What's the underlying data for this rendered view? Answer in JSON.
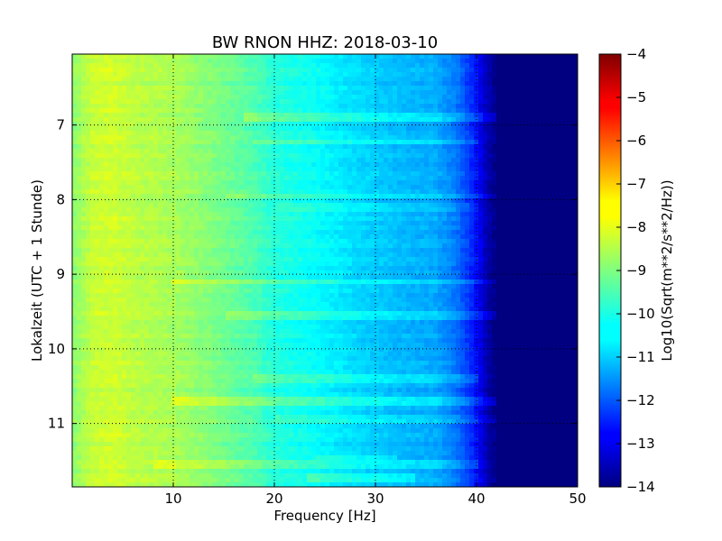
{
  "chart_data": {
    "type": "heatmap",
    "title": "BW RNON HHZ: 2018-03-10",
    "xlabel": "Frequency [Hz]",
    "ylabel": "Lokalzeit (UTC + 1 Stunde)",
    "xlim": [
      0,
      50
    ],
    "ylim": [
      11.85,
      6.05
    ],
    "x_ticks": [
      10,
      20,
      30,
      40,
      50
    ],
    "y_ticks": [
      7,
      8,
      9,
      10,
      11
    ],
    "grid": true,
    "colormap": "jet",
    "colorbar": {
      "label": "Log10(Sqrt(m**2/s**2/Hz))",
      "range": [
        -14,
        -4
      ],
      "ticks": [
        -4,
        -5,
        -6,
        -7,
        -8,
        -9,
        -10,
        -11,
        -12,
        -13,
        -14
      ]
    },
    "spectrum_profile": [
      [
        0,
        -8.9
      ],
      [
        2,
        -8.3
      ],
      [
        4,
        -8.2
      ],
      [
        6,
        -8.4
      ],
      [
        10,
        -8.6
      ],
      [
        14,
        -9.0
      ],
      [
        18,
        -9.5
      ],
      [
        20,
        -9.9
      ],
      [
        24,
        -10.2
      ],
      [
        28,
        -10.6
      ],
      [
        32,
        -10.9
      ],
      [
        36,
        -11.1
      ],
      [
        38,
        -11.6
      ],
      [
        40,
        -12.6
      ],
      [
        41,
        -13.5
      ],
      [
        42,
        -14
      ],
      [
        50,
        -14
      ]
    ],
    "bright_bands": [
      {
        "time": 6.9,
        "freq_range": [
          17,
          43
        ],
        "offset": 0.6
      },
      {
        "time": 7.23,
        "freq_range": [
          18,
          40
        ],
        "offset": 0.4
      },
      {
        "time": 7.95,
        "freq_range": [
          15,
          42
        ],
        "offset": 0.5
      },
      {
        "time": 8.1,
        "freq_range": [
          20,
          40
        ],
        "offset": 0.3
      },
      {
        "time": 9.1,
        "freq_range": [
          10,
          42
        ],
        "offset": 0.4
      },
      {
        "time": 9.55,
        "freq_range": [
          15,
          45
        ],
        "offset": 0.4
      },
      {
        "time": 10.4,
        "freq_range": [
          18,
          40
        ],
        "offset": 0.4
      },
      {
        "time": 10.72,
        "freq_range": [
          10,
          42
        ],
        "offset": 0.6
      },
      {
        "time": 10.95,
        "freq_range": [
          20,
          43
        ],
        "offset": 0.3
      },
      {
        "time": 11.45,
        "freq_range": [
          24,
          32
        ],
        "offset": 0.4
      },
      {
        "time": 11.55,
        "freq_range": [
          8,
          40
        ],
        "offset": 0.4
      },
      {
        "time": 11.72,
        "freq_range": [
          23,
          34
        ],
        "offset": 0.5
      }
    ]
  }
}
